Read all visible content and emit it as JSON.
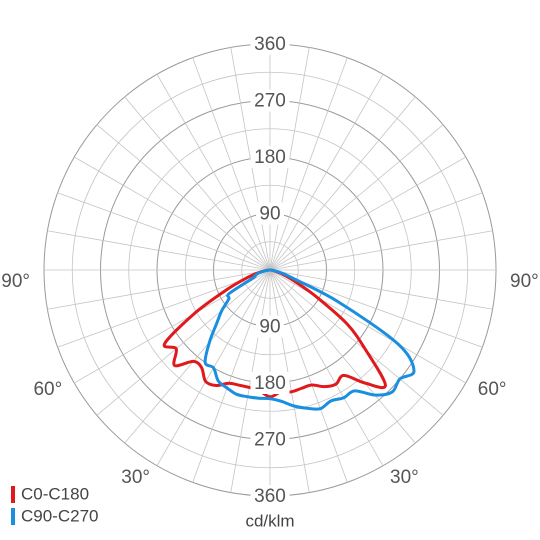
{
  "chart_data": {
    "type": "polar",
    "unit_label": "cd/klm",
    "radial_ticks": [
      "90",
      "180",
      "270",
      "360"
    ],
    "radial_max": 360,
    "angle_tick_labels": [
      "90°",
      "60°",
      "30°",
      "30°",
      "60°",
      "90°"
    ],
    "angle_step_deg": 10,
    "legend": [
      {
        "name": "C0-C180",
        "color": "#e0191c"
      },
      {
        "name": "C90-C270",
        "color": "#1a8fe0"
      }
    ],
    "series": [
      {
        "name": "C0-C180",
        "color": "#e0191c",
        "gamma_deg": [
          -90,
          -85,
          -80,
          -75,
          -70,
          -65,
          -60,
          -55,
          -50,
          -45,
          -40,
          -35,
          -30,
          -25,
          -20,
          -15,
          -10,
          -5,
          0,
          5,
          10,
          15,
          20,
          25,
          30,
          35,
          40,
          45,
          50,
          55,
          60,
          65,
          70,
          75,
          80,
          85,
          90
        ],
        "values": [
          0,
          4,
          12,
          25,
          45,
          80,
          140,
          205,
          195,
          215,
          190,
          190,
          205,
          203,
          192,
          190,
          190,
          193,
          202,
          195,
          197,
          195,
          195,
          205,
          210,
          205,
          235,
          260,
          200,
          150,
          85,
          45,
          25,
          12,
          5,
          2,
          0
        ]
      },
      {
        "name": "C90-C270",
        "color": "#1a8fe0",
        "gamma_deg": [
          -90,
          -85,
          -80,
          -75,
          -70,
          -65,
          -60,
          -55,
          -50,
          -45,
          -40,
          -35,
          -30,
          -25,
          -20,
          -15,
          -10,
          -5,
          0,
          5,
          10,
          15,
          20,
          25,
          30,
          35,
          40,
          45,
          50,
          55,
          60,
          65,
          70,
          75,
          80,
          85,
          90
        ],
        "values": [
          0,
          3,
          8,
          18,
          25,
          30,
          75,
          80,
          100,
          120,
          150,
          180,
          180,
          195,
          200,
          205,
          205,
          205,
          205,
          210,
          220,
          228,
          235,
          230,
          235,
          235,
          260,
          275,
          270,
          280,
          235,
          120,
          40,
          20,
          8,
          3,
          0
        ]
      }
    ]
  }
}
